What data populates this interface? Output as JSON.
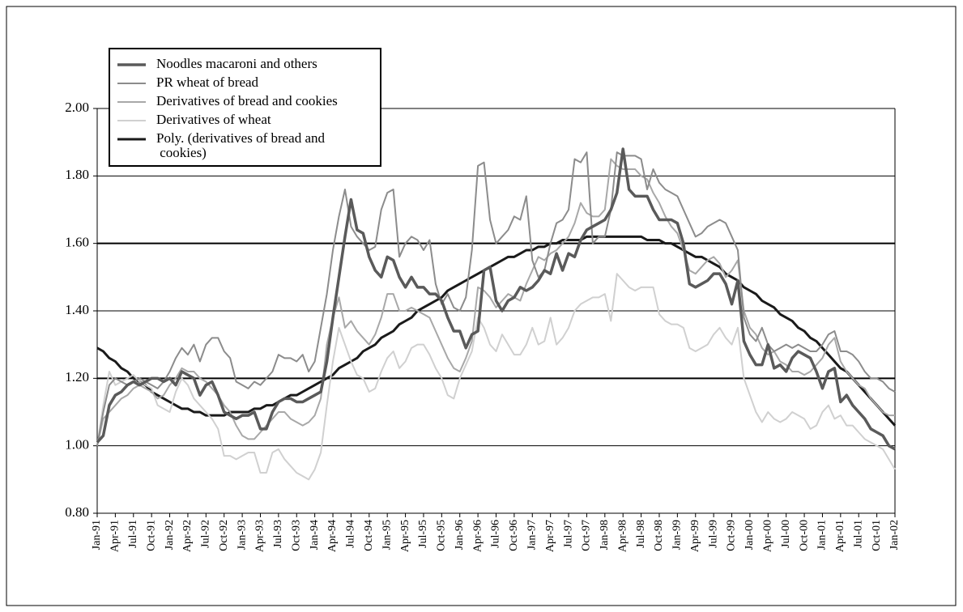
{
  "chart_data": {
    "type": "line",
    "grid": true,
    "categories": [
      "Jan-91",
      null,
      null,
      "Apr-91",
      null,
      null,
      "Jul-91",
      null,
      null,
      "Oct-91",
      null,
      null,
      "Jan-92",
      null,
      null,
      "Apr-92",
      null,
      null,
      "Jul-92",
      null,
      null,
      "Oct-92",
      null,
      null,
      "Jan-93",
      null,
      null,
      "Apr-93",
      null,
      null,
      "Jul-93",
      null,
      null,
      "Oct-93",
      null,
      null,
      "Jan-94",
      null,
      null,
      "Apr-94",
      null,
      null,
      "Jul-94",
      null,
      null,
      "Oct-94",
      null,
      null,
      "Jan-95",
      null,
      null,
      "Apr-95",
      null,
      null,
      "Jul-95",
      null,
      null,
      "Oct-95",
      null,
      null,
      "Jan-96",
      null,
      null,
      "Apr-96",
      null,
      null,
      "Jul-96",
      null,
      null,
      "Oct-96",
      null,
      null,
      "Jan-97",
      null,
      null,
      "Apr-97",
      null,
      null,
      "Jul-97",
      null,
      null,
      "Oct-97",
      null,
      null,
      "Jan-98",
      null,
      null,
      "Apr-98",
      null,
      null,
      "Jul-98",
      null,
      null,
      "Oct-98",
      null,
      null,
      "Jan-99",
      null,
      null,
      "Apr-99",
      null,
      null,
      "Jul-99",
      null,
      null,
      "Oct-99",
      null,
      null,
      "Jan-00",
      null,
      null,
      "Apr-00",
      null,
      null,
      "Jul-00",
      null,
      null,
      "Oct-00",
      null,
      null,
      "Jan-01",
      null,
      null,
      "Apr-01",
      null,
      null,
      "Jul-01",
      null,
      null,
      "Oct-01",
      null,
      null,
      "Jan-02"
    ],
    "ylim": [
      0.8,
      2.0
    ],
    "yticks": [
      {
        "value": 0.8,
        "label": "0.80"
      },
      {
        "value": 1.0,
        "label": "1.00"
      },
      {
        "value": 1.2,
        "label": "1.20"
      },
      {
        "value": 1.4,
        "label": "1.40"
      },
      {
        "value": 1.6,
        "label": "1.60"
      },
      {
        "value": 1.8,
        "label": "1.80"
      },
      {
        "value": 2.0,
        "label": "2.00"
      }
    ],
    "series": [
      {
        "name": "Noodles macaroni and others",
        "color": "#5a5a5a",
        "values": [
          1.01,
          1.03,
          1.12,
          1.15,
          1.16,
          1.18,
          1.19,
          1.18,
          1.19,
          1.2,
          1.2,
          1.19,
          1.2,
          1.18,
          1.22,
          1.21,
          1.2,
          1.15,
          1.18,
          1.19,
          1.15,
          1.1,
          1.09,
          1.08,
          1.09,
          1.09,
          1.1,
          1.05,
          1.05,
          1.1,
          1.13,
          1.14,
          1.14,
          1.13,
          1.13,
          1.14,
          1.15,
          1.16,
          1.25,
          1.38,
          1.5,
          1.62,
          1.73,
          1.64,
          1.63,
          1.56,
          1.52,
          1.5,
          1.56,
          1.55,
          1.5,
          1.47,
          1.5,
          1.47,
          1.47,
          1.45,
          1.45,
          1.43,
          1.38,
          1.34,
          1.34,
          1.29,
          1.33,
          1.34,
          1.52,
          1.53,
          1.43,
          1.4,
          1.43,
          1.44,
          1.47,
          1.46,
          1.47,
          1.49,
          1.52,
          1.51,
          1.57,
          1.52,
          1.57,
          1.56,
          1.61,
          1.64,
          1.65,
          1.66,
          1.67,
          1.7,
          1.75,
          1.88,
          1.76,
          1.74,
          1.74,
          1.74,
          1.7,
          1.67,
          1.67,
          1.67,
          1.66,
          1.6,
          1.48,
          1.47,
          1.48,
          1.49,
          1.51,
          1.51,
          1.48,
          1.42,
          1.49,
          1.31,
          1.27,
          1.24,
          1.24,
          1.3,
          1.23,
          1.24,
          1.22,
          1.26,
          1.28,
          1.27,
          1.26,
          1.22,
          1.17,
          1.22,
          1.23,
          1.13,
          1.15,
          1.12,
          1.1,
          1.08,
          1.05,
          1.04,
          1.03,
          1.0,
          0.99
        ]
      },
      {
        "name": "PR wheat of bread",
        "color": "#8c8c8c",
        "values": [
          1.0,
          1.1,
          1.18,
          1.2,
          1.19,
          1.18,
          1.19,
          1.2,
          1.19,
          1.18,
          1.17,
          1.19,
          1.22,
          1.26,
          1.29,
          1.27,
          1.3,
          1.25,
          1.3,
          1.32,
          1.32,
          1.28,
          1.26,
          1.19,
          1.18,
          1.17,
          1.19,
          1.18,
          1.2,
          1.22,
          1.27,
          1.26,
          1.26,
          1.25,
          1.27,
          1.22,
          1.25,
          1.35,
          1.45,
          1.58,
          1.68,
          1.76,
          1.65,
          1.62,
          1.6,
          1.58,
          1.59,
          1.7,
          1.75,
          1.76,
          1.56,
          1.6,
          1.62,
          1.61,
          1.58,
          1.61,
          1.48,
          1.42,
          1.45,
          1.41,
          1.4,
          1.44,
          1.58,
          1.83,
          1.84,
          1.67,
          1.6,
          1.62,
          1.64,
          1.68,
          1.67,
          1.74,
          1.55,
          1.5,
          1.52,
          1.6,
          1.66,
          1.67,
          1.7,
          1.85,
          1.84,
          1.87,
          1.6,
          1.62,
          1.62,
          1.7,
          1.87,
          1.86,
          1.86,
          1.86,
          1.85,
          1.76,
          1.82,
          1.78,
          1.76,
          1.75,
          1.74,
          1.7,
          1.66,
          1.62,
          1.63,
          1.65,
          1.66,
          1.67,
          1.66,
          1.62,
          1.58,
          1.38,
          1.33,
          1.31,
          1.35,
          1.3,
          1.28,
          1.29,
          1.3,
          1.29,
          1.3,
          1.29,
          1.28,
          1.28,
          1.3,
          1.33,
          1.34,
          1.28,
          1.28,
          1.27,
          1.25,
          1.22,
          1.2,
          1.2,
          1.19,
          1.17,
          1.16
        ]
      },
      {
        "name": "Derivatives of bread and cookies",
        "color": "#a8a8a8",
        "values": [
          1.0,
          1.08,
          1.1,
          1.12,
          1.14,
          1.15,
          1.17,
          1.18,
          1.17,
          1.16,
          1.14,
          1.15,
          1.18,
          1.2,
          1.23,
          1.22,
          1.22,
          1.2,
          1.19,
          1.17,
          1.15,
          1.12,
          1.1,
          1.06,
          1.03,
          1.02,
          1.02,
          1.04,
          1.06,
          1.08,
          1.1,
          1.1,
          1.08,
          1.07,
          1.06,
          1.07,
          1.09,
          1.14,
          1.3,
          1.38,
          1.44,
          1.35,
          1.37,
          1.34,
          1.32,
          1.3,
          1.33,
          1.38,
          1.45,
          1.45,
          1.4,
          1.4,
          1.41,
          1.4,
          1.39,
          1.38,
          1.34,
          1.3,
          1.26,
          1.23,
          1.22,
          1.26,
          1.31,
          1.47,
          1.46,
          1.44,
          1.41,
          1.43,
          1.45,
          1.44,
          1.43,
          1.48,
          1.52,
          1.56,
          1.55,
          1.57,
          1.58,
          1.6,
          1.62,
          1.66,
          1.72,
          1.69,
          1.68,
          1.68,
          1.7,
          1.85,
          1.83,
          1.82,
          1.82,
          1.82,
          1.8,
          1.79,
          1.75,
          1.72,
          1.68,
          1.65,
          1.63,
          1.58,
          1.52,
          1.51,
          1.53,
          1.55,
          1.56,
          1.54,
          1.5,
          1.52,
          1.55,
          1.4,
          1.35,
          1.33,
          1.29,
          1.27,
          1.28,
          1.25,
          1.24,
          1.22,
          1.22,
          1.21,
          1.22,
          1.24,
          1.26,
          1.3,
          1.32,
          1.25,
          1.22,
          1.2,
          1.18,
          1.17,
          1.14,
          1.12,
          1.1,
          1.09,
          1.09
        ]
      },
      {
        "name": "Derivatives of wheat",
        "color": "#d0d0d0",
        "values": [
          1.0,
          1.12,
          1.22,
          1.18,
          1.19,
          1.2,
          1.21,
          1.19,
          1.18,
          1.17,
          1.12,
          1.11,
          1.1,
          1.16,
          1.2,
          1.18,
          1.14,
          1.12,
          1.1,
          1.08,
          1.05,
          0.97,
          0.97,
          0.96,
          0.97,
          0.98,
          0.98,
          0.92,
          0.92,
          0.98,
          0.99,
          0.96,
          0.94,
          0.92,
          0.91,
          0.9,
          0.93,
          0.98,
          1.12,
          1.25,
          1.35,
          1.3,
          1.25,
          1.21,
          1.2,
          1.16,
          1.17,
          1.22,
          1.26,
          1.28,
          1.23,
          1.25,
          1.29,
          1.3,
          1.3,
          1.27,
          1.23,
          1.2,
          1.15,
          1.14,
          1.2,
          1.24,
          1.28,
          1.38,
          1.35,
          1.3,
          1.28,
          1.33,
          1.3,
          1.27,
          1.27,
          1.3,
          1.35,
          1.3,
          1.31,
          1.38,
          1.3,
          1.32,
          1.35,
          1.4,
          1.42,
          1.43,
          1.44,
          1.44,
          1.45,
          1.37,
          1.51,
          1.49,
          1.47,
          1.46,
          1.47,
          1.47,
          1.47,
          1.39,
          1.37,
          1.36,
          1.36,
          1.35,
          1.29,
          1.28,
          1.29,
          1.3,
          1.33,
          1.35,
          1.32,
          1.3,
          1.35,
          1.2,
          1.15,
          1.1,
          1.07,
          1.1,
          1.08,
          1.07,
          1.08,
          1.1,
          1.09,
          1.08,
          1.05,
          1.06,
          1.1,
          1.12,
          1.08,
          1.09,
          1.06,
          1.06,
          1.04,
          1.02,
          1.01,
          1.0,
          0.99,
          0.96,
          0.93
        ]
      },
      {
        "name": "Poly. (derivatives of bread and cookies)",
        "color": "#1a1a1a",
        "values": [
          1.29,
          1.28,
          1.26,
          1.25,
          1.23,
          1.22,
          1.2,
          1.19,
          1.18,
          1.16,
          1.15,
          1.14,
          1.13,
          1.12,
          1.11,
          1.11,
          1.1,
          1.1,
          1.09,
          1.09,
          1.09,
          1.09,
          1.1,
          1.1,
          1.1,
          1.1,
          1.11,
          1.11,
          1.12,
          1.12,
          1.13,
          1.14,
          1.15,
          1.15,
          1.16,
          1.17,
          1.18,
          1.19,
          1.2,
          1.21,
          1.23,
          1.24,
          1.25,
          1.26,
          1.28,
          1.29,
          1.3,
          1.32,
          1.33,
          1.34,
          1.36,
          1.37,
          1.38,
          1.4,
          1.41,
          1.42,
          1.43,
          1.44,
          1.46,
          1.47,
          1.48,
          1.49,
          1.5,
          1.51,
          1.52,
          1.53,
          1.54,
          1.55,
          1.56,
          1.56,
          1.57,
          1.58,
          1.58,
          1.59,
          1.59,
          1.6,
          1.6,
          1.61,
          1.61,
          1.61,
          1.61,
          1.62,
          1.62,
          1.62,
          1.62,
          1.62,
          1.62,
          1.62,
          1.62,
          1.62,
          1.62,
          1.61,
          1.61,
          1.61,
          1.6,
          1.6,
          1.59,
          1.58,
          1.57,
          1.56,
          1.56,
          1.55,
          1.54,
          1.53,
          1.51,
          1.5,
          1.49,
          1.47,
          1.46,
          1.45,
          1.43,
          1.42,
          1.41,
          1.39,
          1.38,
          1.37,
          1.35,
          1.34,
          1.32,
          1.31,
          1.29,
          1.27,
          1.25,
          1.23,
          1.22,
          1.2,
          1.18,
          1.16,
          1.14,
          1.12,
          1.1,
          1.08,
          1.06
        ]
      }
    ]
  }
}
